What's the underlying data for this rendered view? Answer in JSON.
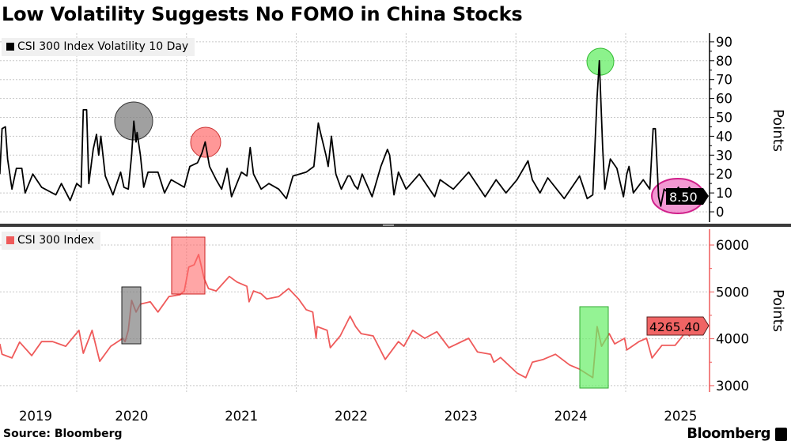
{
  "title": "Low Volatility Suggests No FOMO in China Stocks",
  "source": "Source: Bloomberg",
  "brand": "Bloomberg",
  "brand_icon": "bloomberg-chart-icon",
  "colors": {
    "volatility": "#000000",
    "index": "#ef5a5a",
    "grid": "#c8c8c8",
    "gray_highlight": "#808080",
    "red_highlight": "#ff6b6b",
    "green_highlight": "#66ee66",
    "pink_highlight": "#f080c8"
  },
  "chart_data": [
    {
      "type": "line",
      "legend": "CSI 300 Index Volatility 10 Day",
      "ylabel": "Points",
      "ylim": [
        0,
        90
      ],
      "yticks": [
        0,
        10,
        20,
        30,
        40,
        50,
        60,
        70,
        80,
        90
      ],
      "grid": true,
      "legend_placement": "top-left",
      "last_value_label": "8.50",
      "x": [
        2019.3,
        2019.32,
        2019.35,
        2019.37,
        2019.41,
        2019.45,
        2019.5,
        2019.53,
        2019.6,
        2019.68,
        2019.81,
        2019.86,
        2019.94,
        2020.0,
        2020.04,
        2020.06,
        2020.09,
        2020.11,
        2020.15,
        2020.18,
        2020.2,
        2020.22,
        2020.26,
        2020.33,
        2020.4,
        2020.43,
        2020.47,
        2020.5,
        2020.52,
        2020.54,
        2020.55,
        2020.58,
        2020.61,
        2020.65,
        2020.74,
        2020.8,
        2020.86,
        2020.98,
        2021.03,
        2021.1,
        2021.14,
        2021.17,
        2021.21,
        2021.27,
        2021.32,
        2021.37,
        2021.41,
        2021.5,
        2021.55,
        2021.58,
        2021.61,
        2021.68,
        2021.75,
        2021.84,
        2021.91,
        2021.97,
        2022.09,
        2022.16,
        2022.2,
        2022.22,
        2022.27,
        2022.29,
        2022.32,
        2022.36,
        2022.41,
        2022.47,
        2022.49,
        2022.53,
        2022.56,
        2022.6,
        2022.69,
        2022.77,
        2022.83,
        2022.85,
        2022.89,
        2022.93,
        2023.0,
        2023.12,
        2023.26,
        2023.31,
        2023.43,
        2023.57,
        2023.72,
        2023.82,
        2023.91,
        2024.01,
        2024.11,
        2024.15,
        2024.22,
        2024.29,
        2024.44,
        2024.58,
        2024.65,
        2024.7,
        2024.74,
        2024.76,
        2024.79,
        2024.81,
        2024.86,
        2024.92,
        2024.98,
        2025.01,
        2025.03,
        2025.07,
        2025.16,
        2025.22,
        2025.25,
        2025.27,
        2025.3,
        2025.32,
        2025.35,
        2025.43,
        2025.48,
        2025.52,
        2025.58,
        2025.62
      ],
      "values": [
        20,
        44,
        45,
        28,
        12,
        23,
        23,
        10,
        20,
        13,
        9,
        15,
        6,
        15,
        13,
        54,
        54,
        15,
        33,
        41,
        30,
        40,
        19,
        9,
        21,
        13,
        12,
        30,
        48,
        37,
        42,
        30,
        13,
        21,
        21,
        10,
        17,
        13,
        24,
        26,
        31,
        37,
        24,
        17,
        12,
        23,
        8,
        21,
        19,
        34,
        20,
        12,
        15,
        12,
        7,
        19,
        21,
        24,
        47,
        42,
        30,
        24,
        40,
        20,
        12,
        19,
        19,
        14,
        12,
        20,
        8,
        24,
        33,
        30,
        9,
        21,
        12,
        20,
        8,
        17,
        12,
        21,
        8,
        17,
        10,
        17,
        27,
        17,
        10,
        18,
        7,
        19,
        7,
        9,
        61,
        80,
        34,
        12,
        28,
        23,
        8,
        20,
        24,
        10,
        17,
        12,
        44,
        44,
        8,
        3,
        12,
        8,
        13,
        8,
        13,
        8.5
      ]
    },
    {
      "type": "line",
      "legend": "CSI 300 Index",
      "ylabel": "Points",
      "ylim": [
        2800,
        6200
      ],
      "yticks": [
        3000,
        4000,
        5000,
        6000
      ],
      "grid": true,
      "legend_placement": "top-left",
      "last_value_label": "4265.40",
      "xticks": [
        "2019",
        "2020",
        "2021",
        "2022",
        "2023",
        "2024",
        "2025"
      ],
      "x": [
        2019.3,
        2019.32,
        2019.41,
        2019.48,
        2019.59,
        2019.68,
        2019.78,
        2019.9,
        2020.02,
        2020.06,
        2020.14,
        2020.21,
        2020.31,
        2020.42,
        2020.44,
        2020.47,
        2020.5,
        2020.54,
        2020.58,
        2020.67,
        2020.74,
        2020.84,
        2020.94,
        2020.98,
        2021.02,
        2021.07,
        2021.11,
        2021.16,
        2021.2,
        2021.27,
        2021.39,
        2021.46,
        2021.55,
        2021.57,
        2021.61,
        2021.68,
        2021.73,
        2021.84,
        2021.93,
        2022.02,
        2022.09,
        2022.15,
        2022.18,
        2022.19,
        2022.28,
        2022.31,
        2022.4,
        2022.49,
        2022.52,
        2022.54,
        2022.59,
        2022.7,
        2022.81,
        2022.93,
        2022.98,
        2023.06,
        2023.17,
        2023.28,
        2023.39,
        2023.57,
        2023.65,
        2023.77,
        2023.8,
        2023.86,
        2024.01,
        2024.09,
        2024.15,
        2024.25,
        2024.36,
        2024.49,
        2024.58,
        2024.7,
        2024.74,
        2024.78,
        2024.85,
        2024.9,
        2024.99,
        2025.01,
        2025.12,
        2025.19,
        2025.24,
        2025.33,
        2025.45,
        2025.55,
        2025.58,
        2025.62
      ],
      "values": [
        3890,
        3670,
        3590,
        3930,
        3640,
        3940,
        3940,
        3840,
        4180,
        3690,
        4180,
        3520,
        3840,
        4010,
        3940,
        4180,
        4820,
        4570,
        4740,
        4790,
        4570,
        4900,
        4940,
        5020,
        5530,
        5580,
        5800,
        5290,
        5070,
        5020,
        5330,
        5210,
        5120,
        4790,
        5020,
        4960,
        4850,
        4900,
        5070,
        4850,
        4620,
        4570,
        4010,
        4260,
        4180,
        3810,
        4060,
        4480,
        4350,
        4260,
        4110,
        4060,
        3560,
        3940,
        3840,
        4180,
        4010,
        4150,
        3810,
        4010,
        3720,
        3670,
        3500,
        3600,
        3270,
        3170,
        3500,
        3560,
        3670,
        3440,
        3350,
        3170,
        4260,
        3840,
        4110,
        3890,
        4010,
        3760,
        3940,
        4010,
        3590,
        3860,
        3860,
        4150,
        4060,
        4265.4
      ]
    }
  ]
}
